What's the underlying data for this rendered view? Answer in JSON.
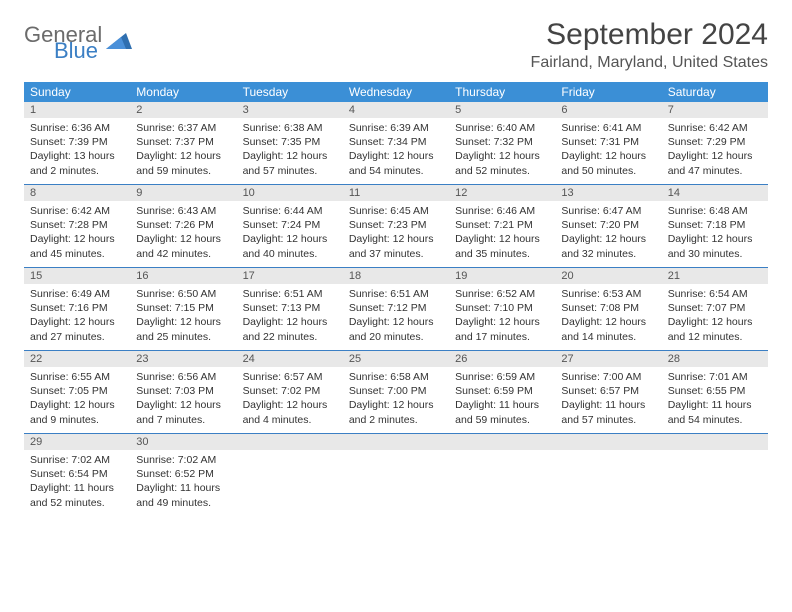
{
  "brand": {
    "part1": "General",
    "part2": "Blue"
  },
  "title": "September 2024",
  "location": "Fairland, Maryland, United States",
  "colors": {
    "header_bg": "#3b8fd6",
    "header_text": "#ffffff",
    "daynum_bg": "#e8e8e8",
    "row_border": "#3b7fc4",
    "brand_gray": "#6b6b6b",
    "brand_blue": "#3b7fc4"
  },
  "weekdays": [
    "Sunday",
    "Monday",
    "Tuesday",
    "Wednesday",
    "Thursday",
    "Friday",
    "Saturday"
  ],
  "days": [
    {
      "n": 1,
      "sunrise": "6:36 AM",
      "sunset": "7:39 PM",
      "daylight": "13 hours and 2 minutes."
    },
    {
      "n": 2,
      "sunrise": "6:37 AM",
      "sunset": "7:37 PM",
      "daylight": "12 hours and 59 minutes."
    },
    {
      "n": 3,
      "sunrise": "6:38 AM",
      "sunset": "7:35 PM",
      "daylight": "12 hours and 57 minutes."
    },
    {
      "n": 4,
      "sunrise": "6:39 AM",
      "sunset": "7:34 PM",
      "daylight": "12 hours and 54 minutes."
    },
    {
      "n": 5,
      "sunrise": "6:40 AM",
      "sunset": "7:32 PM",
      "daylight": "12 hours and 52 minutes."
    },
    {
      "n": 6,
      "sunrise": "6:41 AM",
      "sunset": "7:31 PM",
      "daylight": "12 hours and 50 minutes."
    },
    {
      "n": 7,
      "sunrise": "6:42 AM",
      "sunset": "7:29 PM",
      "daylight": "12 hours and 47 minutes."
    },
    {
      "n": 8,
      "sunrise": "6:42 AM",
      "sunset": "7:28 PM",
      "daylight": "12 hours and 45 minutes."
    },
    {
      "n": 9,
      "sunrise": "6:43 AM",
      "sunset": "7:26 PM",
      "daylight": "12 hours and 42 minutes."
    },
    {
      "n": 10,
      "sunrise": "6:44 AM",
      "sunset": "7:24 PM",
      "daylight": "12 hours and 40 minutes."
    },
    {
      "n": 11,
      "sunrise": "6:45 AM",
      "sunset": "7:23 PM",
      "daylight": "12 hours and 37 minutes."
    },
    {
      "n": 12,
      "sunrise": "6:46 AM",
      "sunset": "7:21 PM",
      "daylight": "12 hours and 35 minutes."
    },
    {
      "n": 13,
      "sunrise": "6:47 AM",
      "sunset": "7:20 PM",
      "daylight": "12 hours and 32 minutes."
    },
    {
      "n": 14,
      "sunrise": "6:48 AM",
      "sunset": "7:18 PM",
      "daylight": "12 hours and 30 minutes."
    },
    {
      "n": 15,
      "sunrise": "6:49 AM",
      "sunset": "7:16 PM",
      "daylight": "12 hours and 27 minutes."
    },
    {
      "n": 16,
      "sunrise": "6:50 AM",
      "sunset": "7:15 PM",
      "daylight": "12 hours and 25 minutes."
    },
    {
      "n": 17,
      "sunrise": "6:51 AM",
      "sunset": "7:13 PM",
      "daylight": "12 hours and 22 minutes."
    },
    {
      "n": 18,
      "sunrise": "6:51 AM",
      "sunset": "7:12 PM",
      "daylight": "12 hours and 20 minutes."
    },
    {
      "n": 19,
      "sunrise": "6:52 AM",
      "sunset": "7:10 PM",
      "daylight": "12 hours and 17 minutes."
    },
    {
      "n": 20,
      "sunrise": "6:53 AM",
      "sunset": "7:08 PM",
      "daylight": "12 hours and 14 minutes."
    },
    {
      "n": 21,
      "sunrise": "6:54 AM",
      "sunset": "7:07 PM",
      "daylight": "12 hours and 12 minutes."
    },
    {
      "n": 22,
      "sunrise": "6:55 AM",
      "sunset": "7:05 PM",
      "daylight": "12 hours and 9 minutes."
    },
    {
      "n": 23,
      "sunrise": "6:56 AM",
      "sunset": "7:03 PM",
      "daylight": "12 hours and 7 minutes."
    },
    {
      "n": 24,
      "sunrise": "6:57 AM",
      "sunset": "7:02 PM",
      "daylight": "12 hours and 4 minutes."
    },
    {
      "n": 25,
      "sunrise": "6:58 AM",
      "sunset": "7:00 PM",
      "daylight": "12 hours and 2 minutes."
    },
    {
      "n": 26,
      "sunrise": "6:59 AM",
      "sunset": "6:59 PM",
      "daylight": "11 hours and 59 minutes."
    },
    {
      "n": 27,
      "sunrise": "7:00 AM",
      "sunset": "6:57 PM",
      "daylight": "11 hours and 57 minutes."
    },
    {
      "n": 28,
      "sunrise": "7:01 AM",
      "sunset": "6:55 PM",
      "daylight": "11 hours and 54 minutes."
    },
    {
      "n": 29,
      "sunrise": "7:02 AM",
      "sunset": "6:54 PM",
      "daylight": "11 hours and 52 minutes."
    },
    {
      "n": 30,
      "sunrise": "7:02 AM",
      "sunset": "6:52 PM",
      "daylight": "11 hours and 49 minutes."
    }
  ],
  "labels": {
    "sunrise": "Sunrise:",
    "sunset": "Sunset:",
    "daylight": "Daylight:"
  },
  "layout": {
    "first_weekday_index": 0,
    "total_cells": 35
  }
}
